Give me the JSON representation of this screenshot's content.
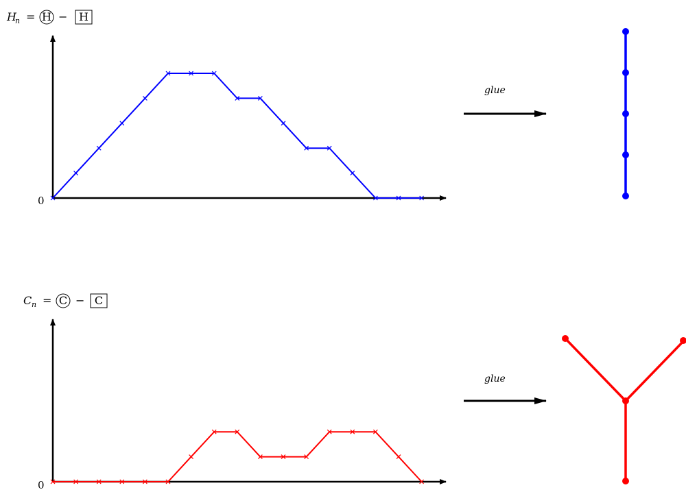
{
  "top": {
    "label": {
      "var": "H",
      "sub": "n",
      "eq": "=",
      "circled": "H",
      "minus": "−",
      "boxed": "H"
    },
    "zero_label": "0",
    "arrow_label": "glue",
    "walk_color": "#0000ff",
    "walk_steps": [
      0,
      1,
      2,
      3,
      4,
      5,
      5,
      5,
      4,
      4,
      3,
      2,
      2,
      1,
      0,
      0,
      0
    ],
    "tree": {
      "type": "path",
      "nodes": 5
    }
  },
  "bottom": {
    "label": {
      "var": "C",
      "sub": "n",
      "eq": "=",
      "circled": "C",
      "minus": "−",
      "boxed": "C"
    },
    "zero_label": "0",
    "arrow_label": "glue",
    "walk_color": "#ff0000",
    "walk_steps": [
      0,
      0,
      0,
      0,
      0,
      0,
      1,
      2,
      2,
      1,
      1,
      1,
      2,
      2,
      2,
      1,
      0
    ],
    "tree": {
      "type": "tripod",
      "nodes": 4
    }
  }
}
